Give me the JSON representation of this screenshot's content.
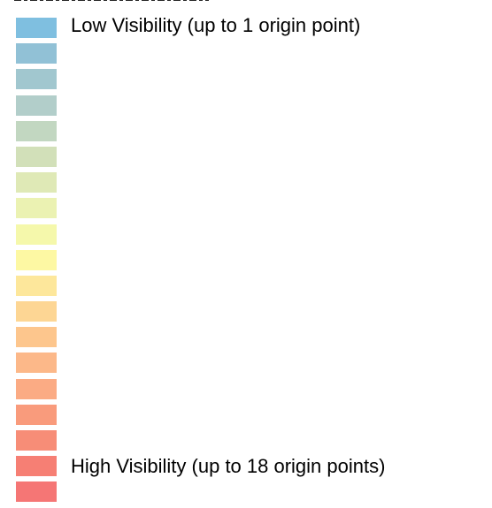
{
  "legend": {
    "low_label": "Low Visibility (up to 1 origin point)",
    "high_label": "High Visibility (up to 18 origin points)",
    "colors": [
      "#7fbfe0",
      "#91c1d6",
      "#a1c7cf",
      "#b2ceca",
      "#c2d7c1",
      "#d2e0b9",
      "#dfe9b6",
      "#ebf2b2",
      "#f5f8ab",
      "#fdf8a3",
      "#fde79b",
      "#fdd694",
      "#fdc68d",
      "#fcb889",
      "#fbab84",
      "#f99b7c",
      "#f78d77",
      "#f67f74",
      "#f57675"
    ]
  }
}
